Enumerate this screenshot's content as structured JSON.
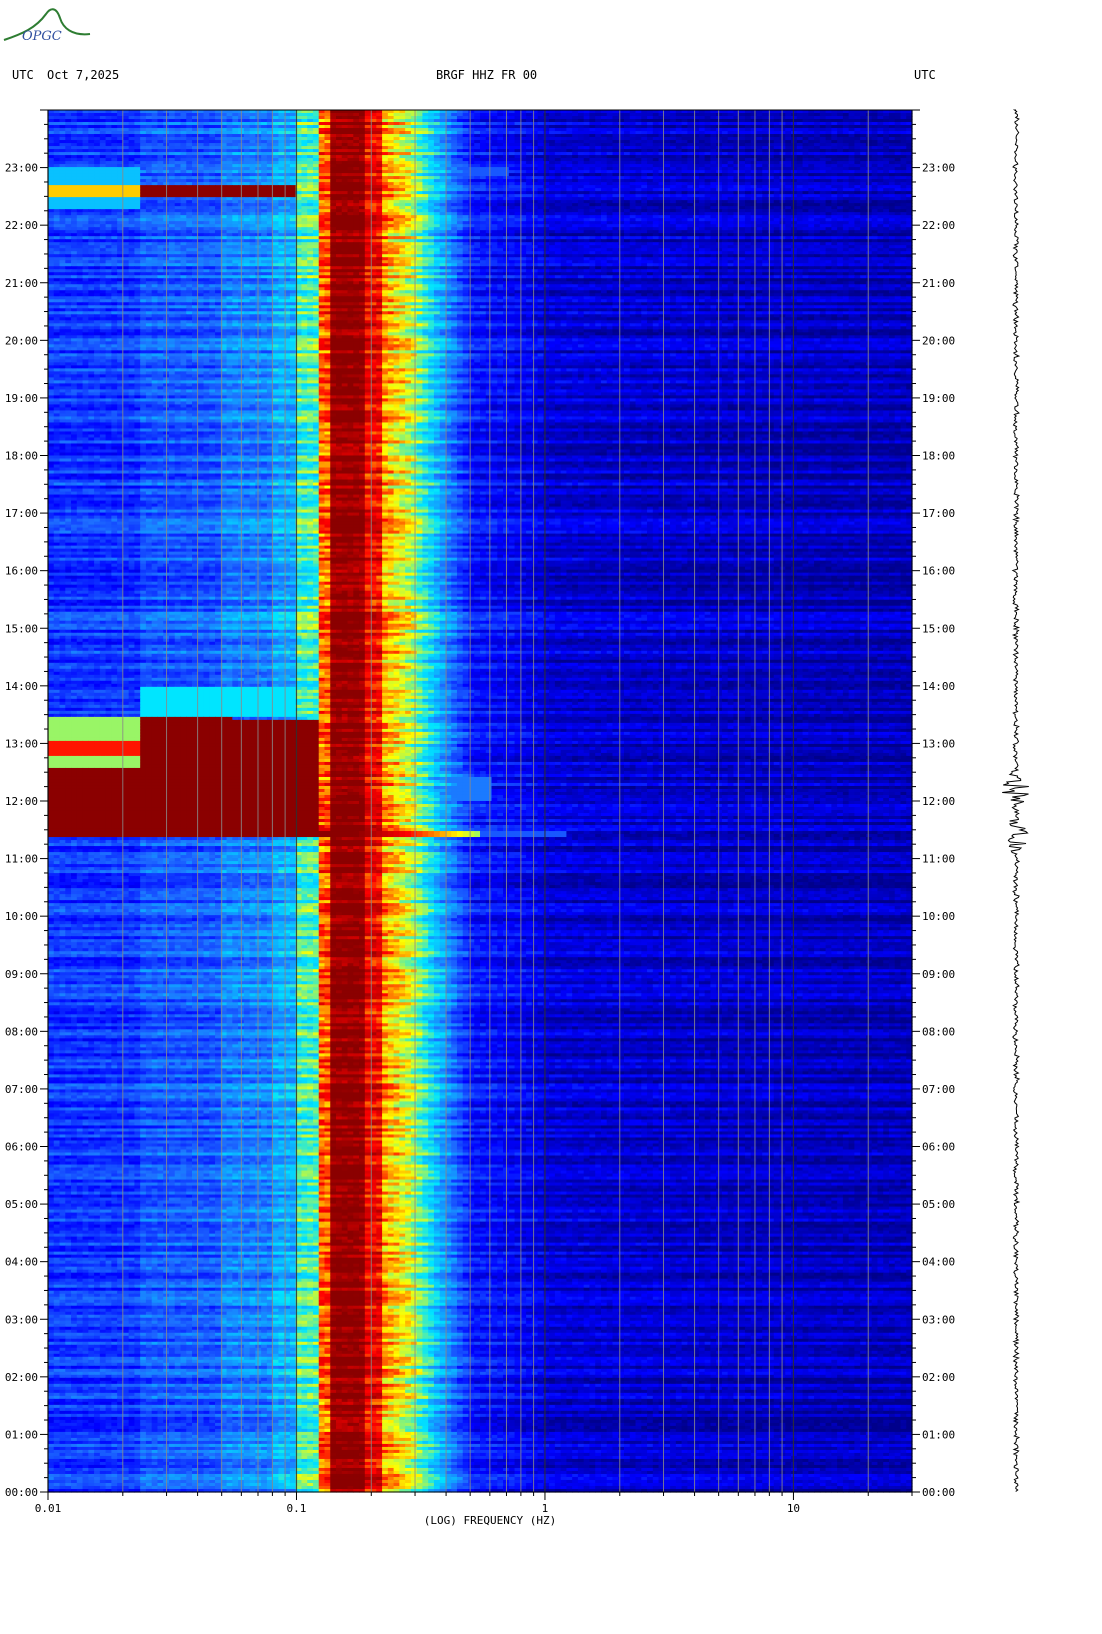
{
  "header": {
    "left_tz": "UTC",
    "date": "Oct 7,2025",
    "station": "BRGF HHZ FR 00",
    "right_tz": "UTC"
  },
  "logo": {
    "text": "OPGC"
  },
  "chart_data": {
    "type": "heatmap",
    "title": "BRGF HHZ FR 00",
    "xlabel": "(LOG) FREQUENCY (HZ)",
    "x_scale": "log",
    "xlim": [
      0.01,
      30
    ],
    "x_ticks": [
      "0.01",
      "0.1",
      "1",
      "10"
    ],
    "y_label_left": "UTC",
    "y_label_right": "UTC",
    "ylim": [
      "00:00",
      "24:00"
    ],
    "y_ticks": [
      "00:00",
      "01:00",
      "02:00",
      "03:00",
      "04:00",
      "05:00",
      "06:00",
      "07:00",
      "08:00",
      "09:00",
      "10:00",
      "11:00",
      "12:00",
      "13:00",
      "14:00",
      "15:00",
      "16:00",
      "17:00",
      "18:00",
      "19:00",
      "20:00",
      "21:00",
      "22:00",
      "23:00"
    ],
    "events": [
      {
        "time_h": 11.4,
        "description": "broadband energy burst up to ~0.5 Hz"
      },
      {
        "time_h": 12.2,
        "description": "long-period energy below 0.1 Hz"
      },
      {
        "time_h": 22.6,
        "description": "long-period energy below 0.1 Hz"
      }
    ],
    "colormap": [
      "#00008b",
      "#0000ff",
      "#1e6eff",
      "#00e5ff",
      "#ffff00",
      "#ff0000",
      "#8b0000"
    ],
    "seismogram": {
      "amplitude_bursts_h": [
        11.4,
        12.2
      ]
    }
  }
}
